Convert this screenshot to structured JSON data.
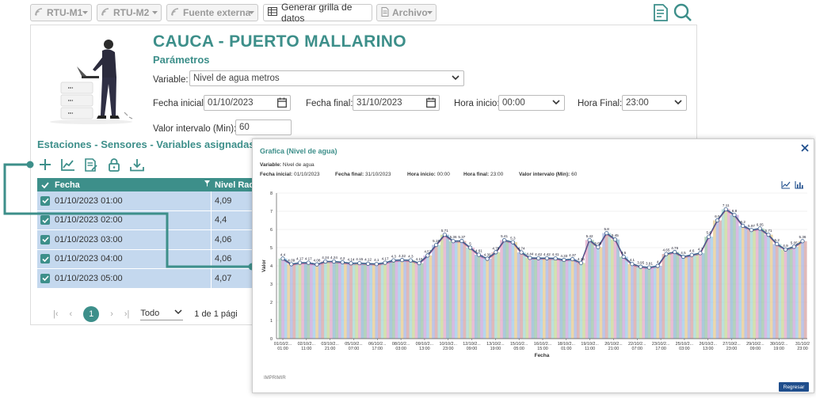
{
  "toolbar": {
    "rtu_m1": "RTU-M1",
    "rtu_m2": "RTU-M2",
    "fuente_externa": "Fuente externa",
    "generar": "Generar grilla de datos",
    "archivo": "Archivo"
  },
  "header": {
    "title": "CAUCA - PUERTO MALLARINO",
    "subtitle": "Parámetros"
  },
  "form": {
    "variable_label": "Variable:",
    "variable_value": "Nivel de agua metros",
    "fecha_inicial_label": "Fecha inicial:",
    "fecha_inicial_value": "01/10/2023",
    "fecha_final_label": "Fecha final:",
    "fecha_final_value": "31/10/2023",
    "hora_inicio_label": "Hora inicio:",
    "hora_inicio_value": "00:00",
    "hora_final_label": "Hora Final:",
    "hora_final_value": "23:00",
    "intervalo_label": "Valor intervalo (Min):",
    "intervalo_value": "60"
  },
  "section_title": "Estaciones - Sensores - Variables asignadas",
  "table": {
    "col_fecha": "Fecha",
    "col_nivel": "Nivel Rad",
    "rows": [
      {
        "fecha": "01/10/2023 01:00",
        "valor": "4,09"
      },
      {
        "fecha": "01/10/2023 02:00",
        "valor": "4,4"
      },
      {
        "fecha": "01/10/2023 03:00",
        "valor": "4,06"
      },
      {
        "fecha": "01/10/2023 04:00",
        "valor": "4,06"
      },
      {
        "fecha": "01/10/2023 05:00",
        "valor": "4,07"
      }
    ]
  },
  "pager": {
    "current": "1",
    "page_size": "Todo",
    "summary": "1 de 1 pági"
  },
  "modal": {
    "title": "Grafica (Nivel de agua)",
    "variable_label": "Variable:",
    "variable_value": "Nivel de agua",
    "fi_label": "Fecha inicial:",
    "fi_value": "01/10/2023",
    "ff_label": "Fecha final:",
    "ff_value": "31/10/2023",
    "hi_label": "Hora inicio:",
    "hi_value": "00:00",
    "hf_label": "Hora final:",
    "hf_value": "23:00",
    "vi_label": "Valor intervalo (Min):",
    "vi_value": "60",
    "imprimir": "IMPRIMIR",
    "regresar": "Regresar"
  },
  "colors": {
    "teal": "#3d8f8a",
    "row_bg": "#c4d8ee",
    "button_blue": "#1f4e8c"
  },
  "chart_data": {
    "type": "line",
    "xlabel": "Fecha",
    "ylabel": "Valor",
    "ylim": [
      0,
      8
    ],
    "yticks": [
      0,
      1,
      2,
      3,
      4,
      5,
      6,
      7,
      8
    ],
    "x_ticks": [
      [
        "01/10/2...",
        "01:00"
      ],
      [
        "02/10/2...",
        "11:00"
      ],
      [
        "03/10/2...",
        "21:00"
      ],
      [
        "05/10/2...",
        "07:00"
      ],
      [
        "06/10/2...",
        "17:00"
      ],
      [
        "08/10/2...",
        "03:00"
      ],
      [
        "09/10/2...",
        "13:00"
      ],
      [
        "10/10/2...",
        "23:00"
      ],
      [
        "12/10/2...",
        "09:00"
      ],
      [
        "13/10/2...",
        "19:00"
      ],
      [
        "15/10/2...",
        "05:00"
      ],
      [
        "16/10/2...",
        "15:00"
      ],
      [
        "18/10/2...",
        "01:00"
      ],
      [
        "19/10/2...",
        "11:00"
      ],
      [
        "20/10/2...",
        "21:00"
      ],
      [
        "22/10/2...",
        "07:00"
      ],
      [
        "23/10/2...",
        "17:00"
      ],
      [
        "25/10/2...",
        "03:00"
      ],
      [
        "26/10/2...",
        "13:00"
      ],
      [
        "27/10/2...",
        "23:00"
      ],
      [
        "29/10/2...",
        "09:00"
      ],
      [
        "30/10/2...",
        "19:00"
      ],
      [
        "31/10/2",
        "23:00"
      ]
    ],
    "values": [
      4.4,
      4.09,
      4.17,
      4.17,
      4.08,
      4.24,
      4.24,
      4.2,
      4.14,
      4.15,
      4.12,
      4.1,
      4.17,
      4.3,
      4.32,
      4.3,
      4.15,
      4.57,
      5.15,
      5.71,
      5.36,
      5.37,
      5.0,
      4.61,
      4.39,
      4.75,
      5.41,
      5.3,
      4.74,
      4.44,
      4.42,
      4.42,
      4.41,
      4.33,
      4.37,
      4.16,
      5.42,
      5.03,
      5.8,
      5.45,
      4.5,
      4.1,
      3.95,
      3.91,
      4.0,
      4.65,
      4.76,
      4.5,
      4.6,
      4.7,
      5.6,
      6.5,
      7.11,
      6.8,
      6.2,
      5.97,
      6.05,
      5.71,
      5.2,
      4.9,
      5.05,
      5.36
    ]
  }
}
